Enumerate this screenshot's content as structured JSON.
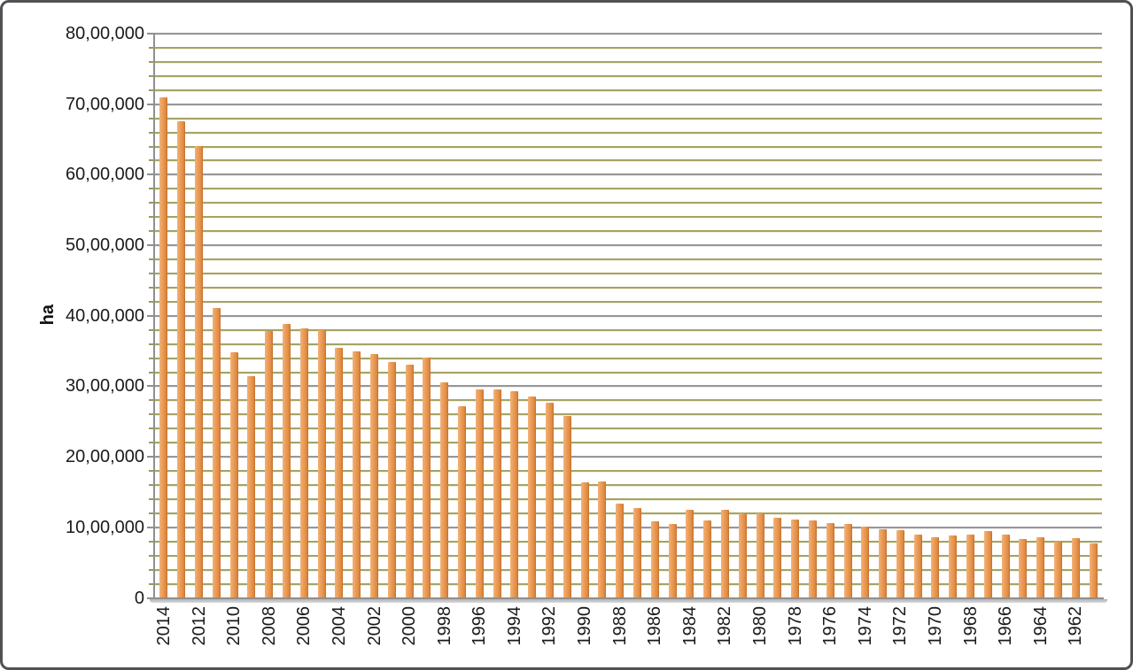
{
  "window": {
    "background": "#ffffff",
    "border_color": "#515155"
  },
  "chart_data": {
    "type": "bar",
    "title": "",
    "xlabel": "",
    "ylabel": "ha",
    "legend": "none",
    "grid": "on",
    "ylim": [
      0,
      8000000
    ],
    "y_major_unit": 1000000,
    "y_minor_unit": 200000,
    "y_tick_labels": [
      "0",
      "10,00,000",
      "20,00,000",
      "30,00,000",
      "40,00,000",
      "50,00,000",
      "60,00,000",
      "70,00,000",
      "80,00,000"
    ],
    "x_label_every": 2,
    "bar_color_light": "#f2b27a",
    "bar_color_mid": "#ea9a54",
    "bar_color_dark": "#bf6f31",
    "major_grid_color": "#979797",
    "minor_grid_color": "#a6a365",
    "categories": [
      "2014",
      "2013",
      "2012",
      "2011",
      "2010",
      "2009",
      "2008",
      "2007",
      "2006",
      "2005",
      "2004",
      "2003",
      "2002",
      "2001",
      "2000",
      "1999",
      "1998",
      "1997",
      "1996",
      "1995",
      "1994",
      "1993",
      "1992",
      "1991",
      "1990",
      "1989",
      "1988",
      "1987",
      "1986",
      "1985",
      "1984",
      "1983",
      "1982",
      "1981",
      "1980",
      "1979",
      "1978",
      "1977",
      "1976",
      "1975",
      "1974",
      "1973",
      "1972",
      "1971",
      "1970",
      "1969",
      "1968",
      "1967",
      "1966",
      "1965",
      "1964",
      "1963",
      "1962",
      "1961"
    ],
    "values": [
      7100000,
      6760000,
      6410000,
      4120000,
      3490000,
      3150000,
      3790000,
      3890000,
      3830000,
      3800000,
      3550000,
      3500000,
      3460000,
      3350000,
      3310000,
      3420000,
      3060000,
      2720000,
      2960000,
      2960000,
      2940000,
      2860000,
      2770000,
      2580000,
      1650000,
      1660000,
      1340000,
      1280000,
      1090000,
      1060000,
      1260000,
      1100000,
      1250000,
      1210000,
      1200000,
      1140000,
      1120000,
      1100000,
      1070000,
      1050000,
      1020000,
      980000,
      970000,
      910000,
      870000,
      890000,
      900000,
      960000,
      900000,
      840000,
      870000,
      800000,
      860000,
      780000
    ]
  }
}
